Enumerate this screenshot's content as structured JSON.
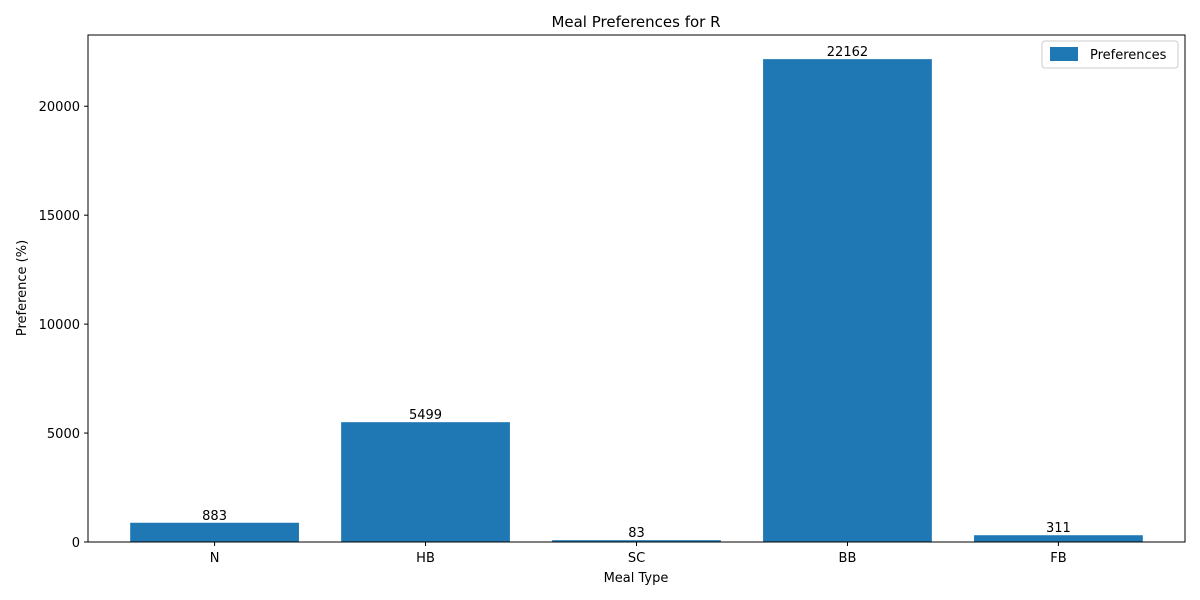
{
  "chart_data": {
    "type": "bar",
    "title": "Meal Preferences for R",
    "xlabel": "Meal Type",
    "ylabel": "Preference (%)",
    "categories": [
      "N",
      "HB",
      "SC",
      "BB",
      "FB"
    ],
    "series": [
      {
        "name": "Preferences",
        "values": [
          883,
          5499,
          83,
          22162,
          311
        ],
        "color": "#1f77b4"
      }
    ],
    "yticks": [
      0,
      5000,
      10000,
      15000,
      20000
    ],
    "ylim": [
      0,
      23270
    ],
    "grid": false,
    "legend": "top-right"
  }
}
